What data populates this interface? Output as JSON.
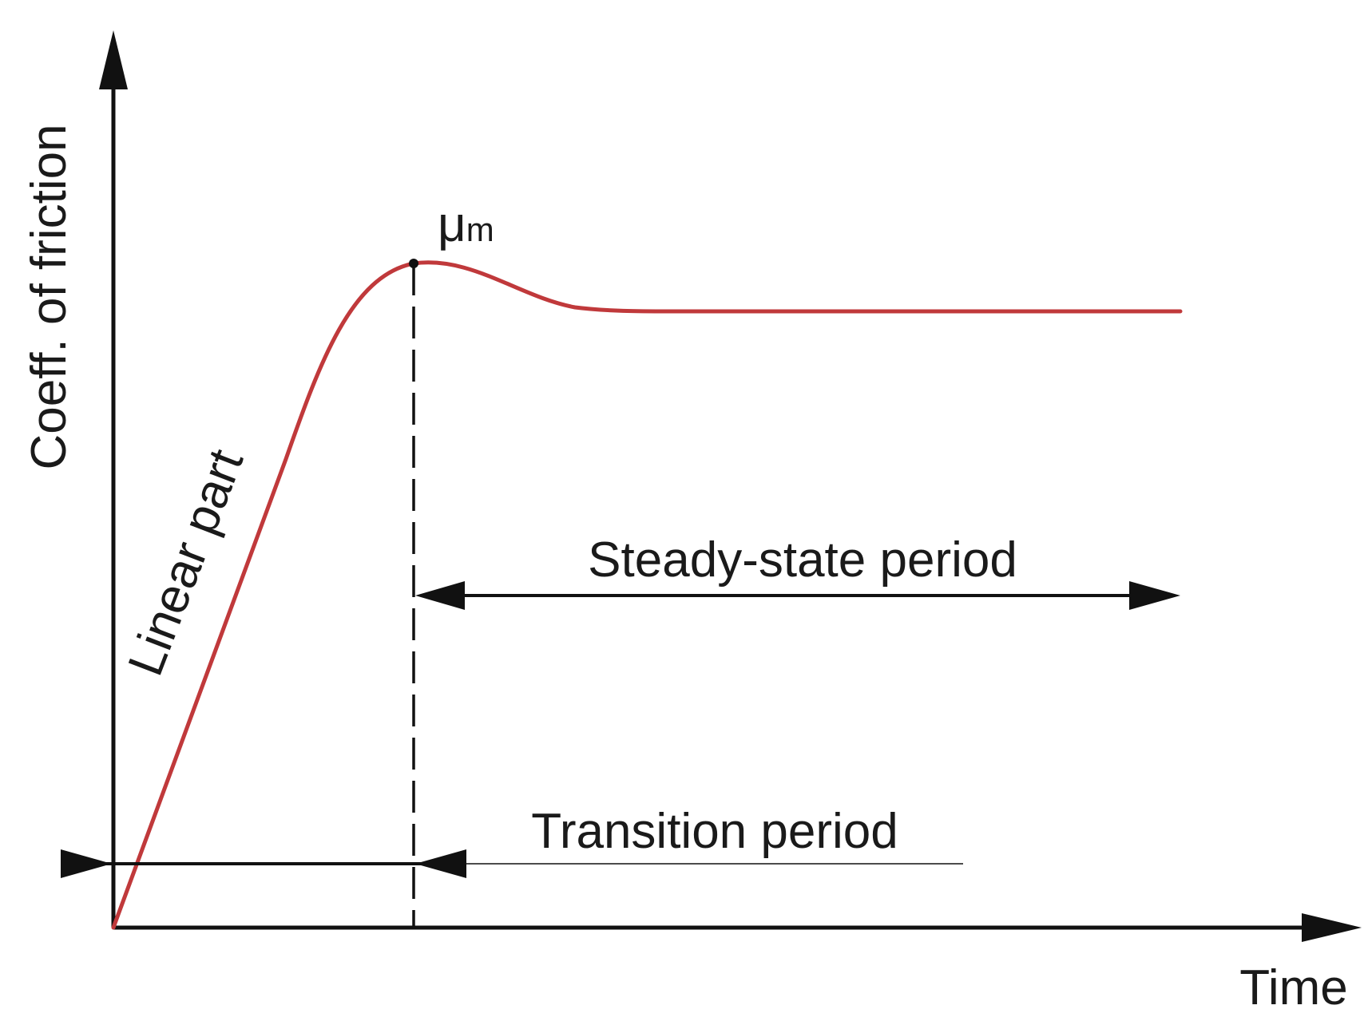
{
  "labels": {
    "y_axis": "Coeff. of friction",
    "x_axis": "Time",
    "mu": "μ",
    "mu_sub": "m",
    "linear_part": "Linear part",
    "steady_state": "Steady-state period",
    "transition": "Transition period"
  },
  "colors": {
    "curve": "#c0393b",
    "ink": "#111111"
  }
}
